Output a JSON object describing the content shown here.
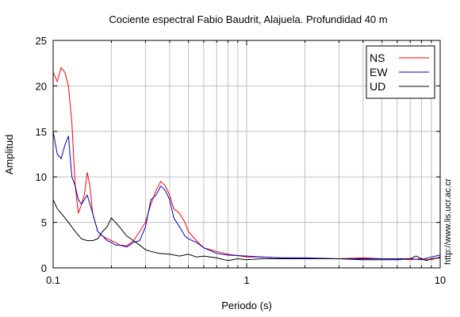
{
  "chart_data": {
    "type": "line",
    "title": "Cociente espectral Fabio Baudrit, Alajuela. Profundidad 40 m",
    "xlabel": "Periodo (s)",
    "ylabel": "Amplitud",
    "xscale": "log",
    "xlim": [
      0.1,
      10
    ],
    "ylim": [
      0,
      25
    ],
    "xticks": [
      {
        "value": 0.1,
        "label": "0.1"
      },
      {
        "value": 1,
        "label": "1"
      },
      {
        "value": 10,
        "label": "10"
      }
    ],
    "yticks": [
      {
        "value": 0,
        "label": "0"
      },
      {
        "value": 5,
        "label": "5"
      },
      {
        "value": 10,
        "label": "10"
      },
      {
        "value": 15,
        "label": "15"
      },
      {
        "value": 20,
        "label": "20"
      },
      {
        "value": 25,
        "label": "25"
      }
    ],
    "grid": true,
    "legend_position": "top-right",
    "annotation": "http://www.lis.ucr.ac.cr",
    "series": [
      {
        "name": "NS",
        "color": "#ff0000",
        "x": [
          0.1,
          0.105,
          0.11,
          0.115,
          0.12,
          0.125,
          0.13,
          0.135,
          0.14,
          0.145,
          0.15,
          0.155,
          0.16,
          0.17,
          0.18,
          0.19,
          0.2,
          0.21,
          0.22,
          0.24,
          0.26,
          0.28,
          0.3,
          0.32,
          0.34,
          0.36,
          0.38,
          0.4,
          0.42,
          0.45,
          0.48,
          0.5,
          0.55,
          0.6,
          0.7,
          0.8,
          1.0,
          1.2,
          1.5,
          2.0,
          3.0,
          4.0,
          5.0,
          6.0,
          7.0,
          8.0,
          9.0,
          10.0
        ],
        "y": [
          21.5,
          20.5,
          22.0,
          21.5,
          20.0,
          16.0,
          9.0,
          6.0,
          7.0,
          8.0,
          10.5,
          9.0,
          6.0,
          4.0,
          3.5,
          3.2,
          3.0,
          2.8,
          2.5,
          2.4,
          3.0,
          4.0,
          5.0,
          7.0,
          8.5,
          9.5,
          9.0,
          8.0,
          6.5,
          6.0,
          5.0,
          4.0,
          3.0,
          2.2,
          1.8,
          1.5,
          1.2,
          1.2,
          1.1,
          1.0,
          1.0,
          1.1,
          1.0,
          1.0,
          0.9,
          1.0,
          0.9,
          1.2
        ]
      },
      {
        "name": "EW",
        "color": "#0000cc",
        "x": [
          0.1,
          0.105,
          0.11,
          0.115,
          0.12,
          0.125,
          0.13,
          0.135,
          0.14,
          0.145,
          0.15,
          0.16,
          0.17,
          0.18,
          0.19,
          0.2,
          0.21,
          0.22,
          0.24,
          0.26,
          0.28,
          0.3,
          0.32,
          0.34,
          0.36,
          0.38,
          0.4,
          0.42,
          0.45,
          0.48,
          0.5,
          0.55,
          0.6,
          0.7,
          0.8,
          1.0,
          1.2,
          1.5,
          2.0,
          3.0,
          4.0,
          5.0,
          6.0,
          7.0,
          8.0,
          9.0,
          10.0
        ],
        "y": [
          15.0,
          12.5,
          12.0,
          13.5,
          14.5,
          10.0,
          9.0,
          7.5,
          7.0,
          7.5,
          8.0,
          6.0,
          4.0,
          3.5,
          3.0,
          2.8,
          2.5,
          2.5,
          2.3,
          2.8,
          3.0,
          4.5,
          7.5,
          8.0,
          9.0,
          8.5,
          7.5,
          5.5,
          4.5,
          3.5,
          3.2,
          2.8,
          2.2,
          1.6,
          1.4,
          1.3,
          1.2,
          1.1,
          1.1,
          1.0,
          1.0,
          1.0,
          1.0,
          1.0,
          0.9,
          1.2,
          1.4
        ]
      },
      {
        "name": "UD",
        "color": "#000000",
        "x": [
          0.1,
          0.105,
          0.11,
          0.12,
          0.13,
          0.14,
          0.15,
          0.16,
          0.17,
          0.18,
          0.19,
          0.2,
          0.21,
          0.22,
          0.24,
          0.26,
          0.28,
          0.3,
          0.32,
          0.35,
          0.4,
          0.45,
          0.5,
          0.55,
          0.6,
          0.7,
          0.8,
          0.9,
          1.0,
          1.2,
          1.5,
          2.0,
          3.0,
          4.0,
          5.0,
          6.0,
          7.0,
          7.5,
          8.0,
          8.5,
          9.0,
          10.0
        ],
        "y": [
          7.5,
          6.5,
          6.0,
          5.0,
          4.0,
          3.2,
          3.0,
          3.0,
          3.2,
          4.0,
          4.5,
          5.5,
          5.0,
          4.5,
          3.5,
          3.0,
          2.5,
          2.0,
          1.8,
          1.6,
          1.5,
          1.3,
          1.5,
          1.2,
          1.3,
          1.1,
          0.8,
          1.0,
          0.9,
          1.0,
          1.0,
          1.0,
          1.0,
          0.9,
          0.9,
          0.9,
          1.0,
          1.3,
          1.0,
          0.8,
          1.0,
          1.1
        ]
      }
    ]
  }
}
